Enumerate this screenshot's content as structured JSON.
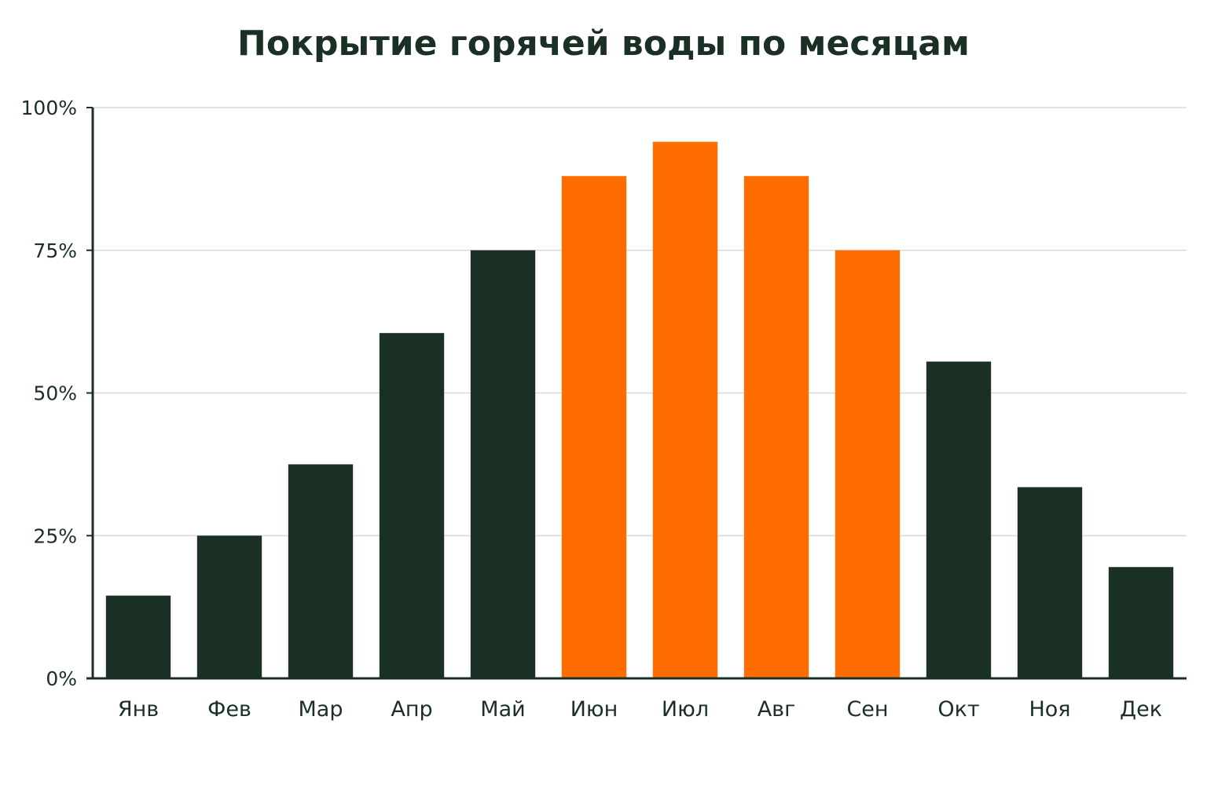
{
  "chart_data": {
    "type": "bar",
    "title": "Покрытие горячей воды по месяцам",
    "xlabel": "",
    "ylabel": "",
    "categories": [
      "Янв",
      "Фев",
      "Мар",
      "Апр",
      "Май",
      "Июн",
      "Июл",
      "Авг",
      "Сен",
      "Окт",
      "Ноя",
      "Дек"
    ],
    "values": [
      14.5,
      25,
      37.5,
      60.5,
      75,
      88,
      94,
      88,
      75,
      55.5,
      33.5,
      19.5
    ],
    "highlighted": [
      false,
      false,
      false,
      false,
      false,
      true,
      true,
      true,
      true,
      false,
      false,
      false
    ],
    "ylim": [
      0,
      100
    ],
    "yticks": [
      0,
      25,
      50,
      75,
      100
    ],
    "ytick_labels": [
      "0%",
      "25%",
      "50%",
      "75%",
      "100%"
    ],
    "grid": true,
    "legend": "none",
    "colors": {
      "bar": "#1b3025",
      "highlight": "#ff6d00",
      "grid": "#d9d9d9",
      "axis": "#1b3025",
      "text": "#1b3025"
    }
  }
}
